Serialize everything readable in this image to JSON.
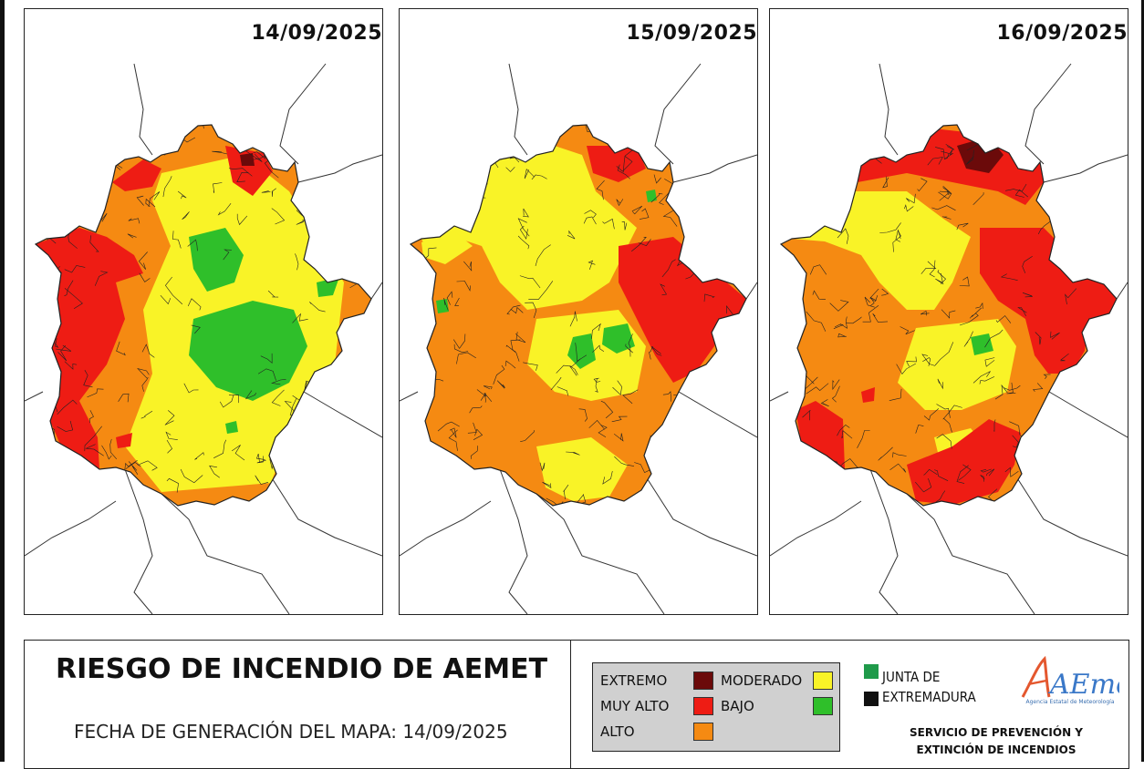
{
  "panels": [
    {
      "date": "14/09/2025",
      "variant": 0
    },
    {
      "date": "15/09/2025",
      "variant": 1
    },
    {
      "date": "16/09/2025",
      "variant": 2
    }
  ],
  "title": "RIESGO DE INCENDIO DE AEMET",
  "generation": "FECHA DE GENERACIÓN DEL MAPA: 14/09/2025",
  "legend": {
    "extremo": {
      "label": "EXTREMO",
      "color": "#6b0a0a"
    },
    "muy_alto": {
      "label": "MUY ALTO",
      "color": "#ee1c14"
    },
    "alto": {
      "label": "ALTO",
      "color": "#f58a12"
    },
    "moderado": {
      "label": "MODERADO",
      "color": "#f9f327"
    },
    "bajo": {
      "label": "BAJO",
      "color": "#2fbf2a"
    }
  },
  "junta": {
    "line1": "JUNTA DE",
    "line2": "EXTREMADURA",
    "green": "#1f9a4a",
    "black": "#111111"
  },
  "aemet": {
    "logo_text": "AEmet",
    "subtitle": "Agencia Estatal de Meteorología"
  },
  "service": {
    "line1": "SERVICIO DE PREVENCIÓN Y",
    "line2": "EXTINCIÓN DE INCENDIOS"
  }
}
